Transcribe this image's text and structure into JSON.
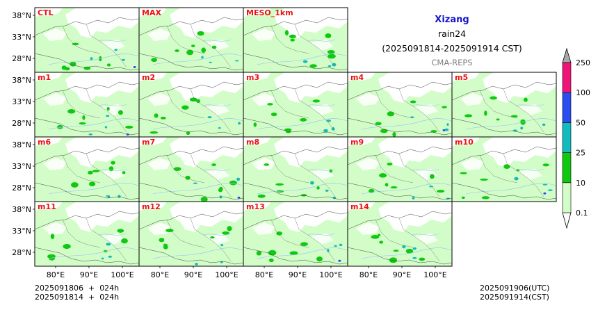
{
  "header": {
    "region": "Xizang",
    "variable": "rain24",
    "period": "(2025091814-2025091914 CST)",
    "source": "CMA-REPS"
  },
  "panels": [
    "CTL",
    "MAX",
    "MESO_1km",
    "m1",
    "m2",
    "m3",
    "m4",
    "m5",
    "m6",
    "m7",
    "m8",
    "m9",
    "m10",
    "m11",
    "m12",
    "m13",
    "m14"
  ],
  "lat_labels": [
    "38°N",
    "33°N",
    "28°N"
  ],
  "lon_labels": [
    "80°E",
    "90°E",
    "100°E"
  ],
  "colorbar": {
    "levels": [
      "0.1",
      "10",
      "25",
      "50",
      "100",
      "250"
    ],
    "colors": [
      "#d3fdc8",
      "#10c810",
      "#12bcbc",
      "#2b4ef0",
      "#f01478"
    ],
    "extend_low_color": "#ffffff",
    "extend_high_color": "#a8a8a8"
  },
  "footer": {
    "init_line1": "2025091806  +  024h",
    "init_line2": "2025091814  +  024h",
    "valid_utc": "2025091906(UTC)",
    "valid_cst": "2025091914(CST)"
  },
  "colors": {
    "title_blue": "#1414c8",
    "label_red": "#ee1111",
    "source_gray": "#808080"
  }
}
